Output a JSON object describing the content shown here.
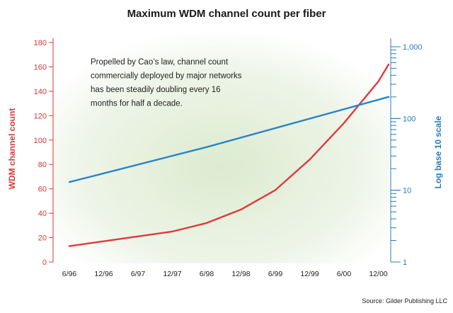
{
  "chart_data": {
    "type": "line",
    "title": "Maximum WDM channel count per fiber",
    "ylabel_left": "WDM channel count",
    "ylabel_right": "Log base 10 scale",
    "categories": [
      "6/96",
      "12/96",
      "6/97",
      "12/97",
      "6/98",
      "12/98",
      "6/99",
      "12/99",
      "6/00",
      "12/00"
    ],
    "ylim_left": [
      0,
      180
    ],
    "yticks_left": [
      "0",
      "20",
      "40",
      "60",
      "80",
      "100",
      "120",
      "140",
      "160",
      "180"
    ],
    "ylim_right": [
      1,
      1000
    ],
    "right_scale": "log",
    "yticks_right": [
      {
        "value": 1,
        "label": "1"
      },
      {
        "value": 10,
        "label": "10"
      },
      {
        "value": 100,
        "label": "100"
      },
      {
        "value": 1000,
        "label": "1,000"
      }
    ],
    "series": [
      {
        "axis": "left",
        "color": "#e0393e",
        "x": [
          0,
          1,
          2,
          3,
          4,
          5,
          6,
          7,
          8,
          9,
          9.3
        ],
        "values": [
          13,
          17,
          21,
          25,
          32,
          43,
          59,
          84,
          114,
          148,
          162
        ]
      },
      {
        "axis": "right",
        "color": "#2b84c8",
        "x": [
          0,
          4,
          9.3
        ],
        "values": [
          13,
          40,
          200
        ]
      }
    ],
    "annotation": [
      "Propelled by Cao’s law, channel count",
      "commercially deployed by major networks",
      "has been steadily doubling every 16",
      "months for half a decade."
    ],
    "source": "Source: Gilder Publishing LLC"
  }
}
